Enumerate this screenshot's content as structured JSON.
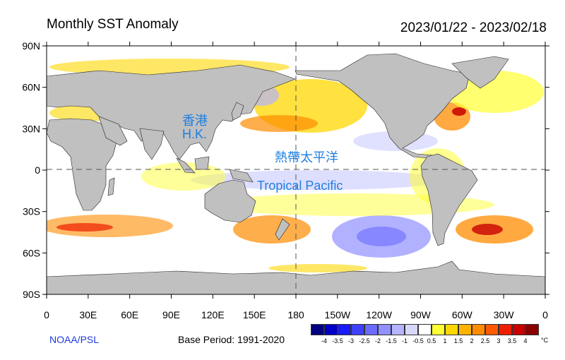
{
  "header": {
    "title": "Monthly SST Anomaly",
    "date_range": "2023/01/22 - 2023/02/18"
  },
  "map": {
    "lat_ticks": [
      "90N",
      "60N",
      "30N",
      "0",
      "30S",
      "60S",
      "90S"
    ],
    "lon_ticks": [
      "0",
      "30E",
      "60E",
      "90E",
      "120E",
      "150E",
      "180",
      "150W",
      "120W",
      "90W",
      "60W",
      "30W",
      "0"
    ],
    "labels": {
      "hk_cn": "香港",
      "hk_en": "H.K.",
      "pacific_cn": "熱帶太平洋",
      "pacific_en": "Tropical Pacific"
    },
    "colors": {
      "land": "#c0c0c0",
      "ocean": "#ffffff",
      "grid": "#555555"
    }
  },
  "footer": {
    "credit": "NOAA/PSL",
    "base_period": "Base Period: 1991-2020"
  },
  "colorbar": {
    "unit": "°C",
    "labels": [
      "-4",
      "-3.5",
      "-3",
      "-2.5",
      "-2",
      "-1.5",
      "-1",
      "-0.5",
      "0.5",
      "1",
      "1.5",
      "2",
      "2.5",
      "3",
      "3.5",
      "4"
    ],
    "colors": [
      "#000080",
      "#0000c8",
      "#1a1aff",
      "#4040ff",
      "#6b6bff",
      "#9090ff",
      "#b4b4ff",
      "#d8d8ff",
      "#ffffff",
      "#ffff33",
      "#ffd700",
      "#ffb300",
      "#ff8c00",
      "#ff5a00",
      "#ee1f00",
      "#c80000",
      "#8b0000"
    ]
  }
}
